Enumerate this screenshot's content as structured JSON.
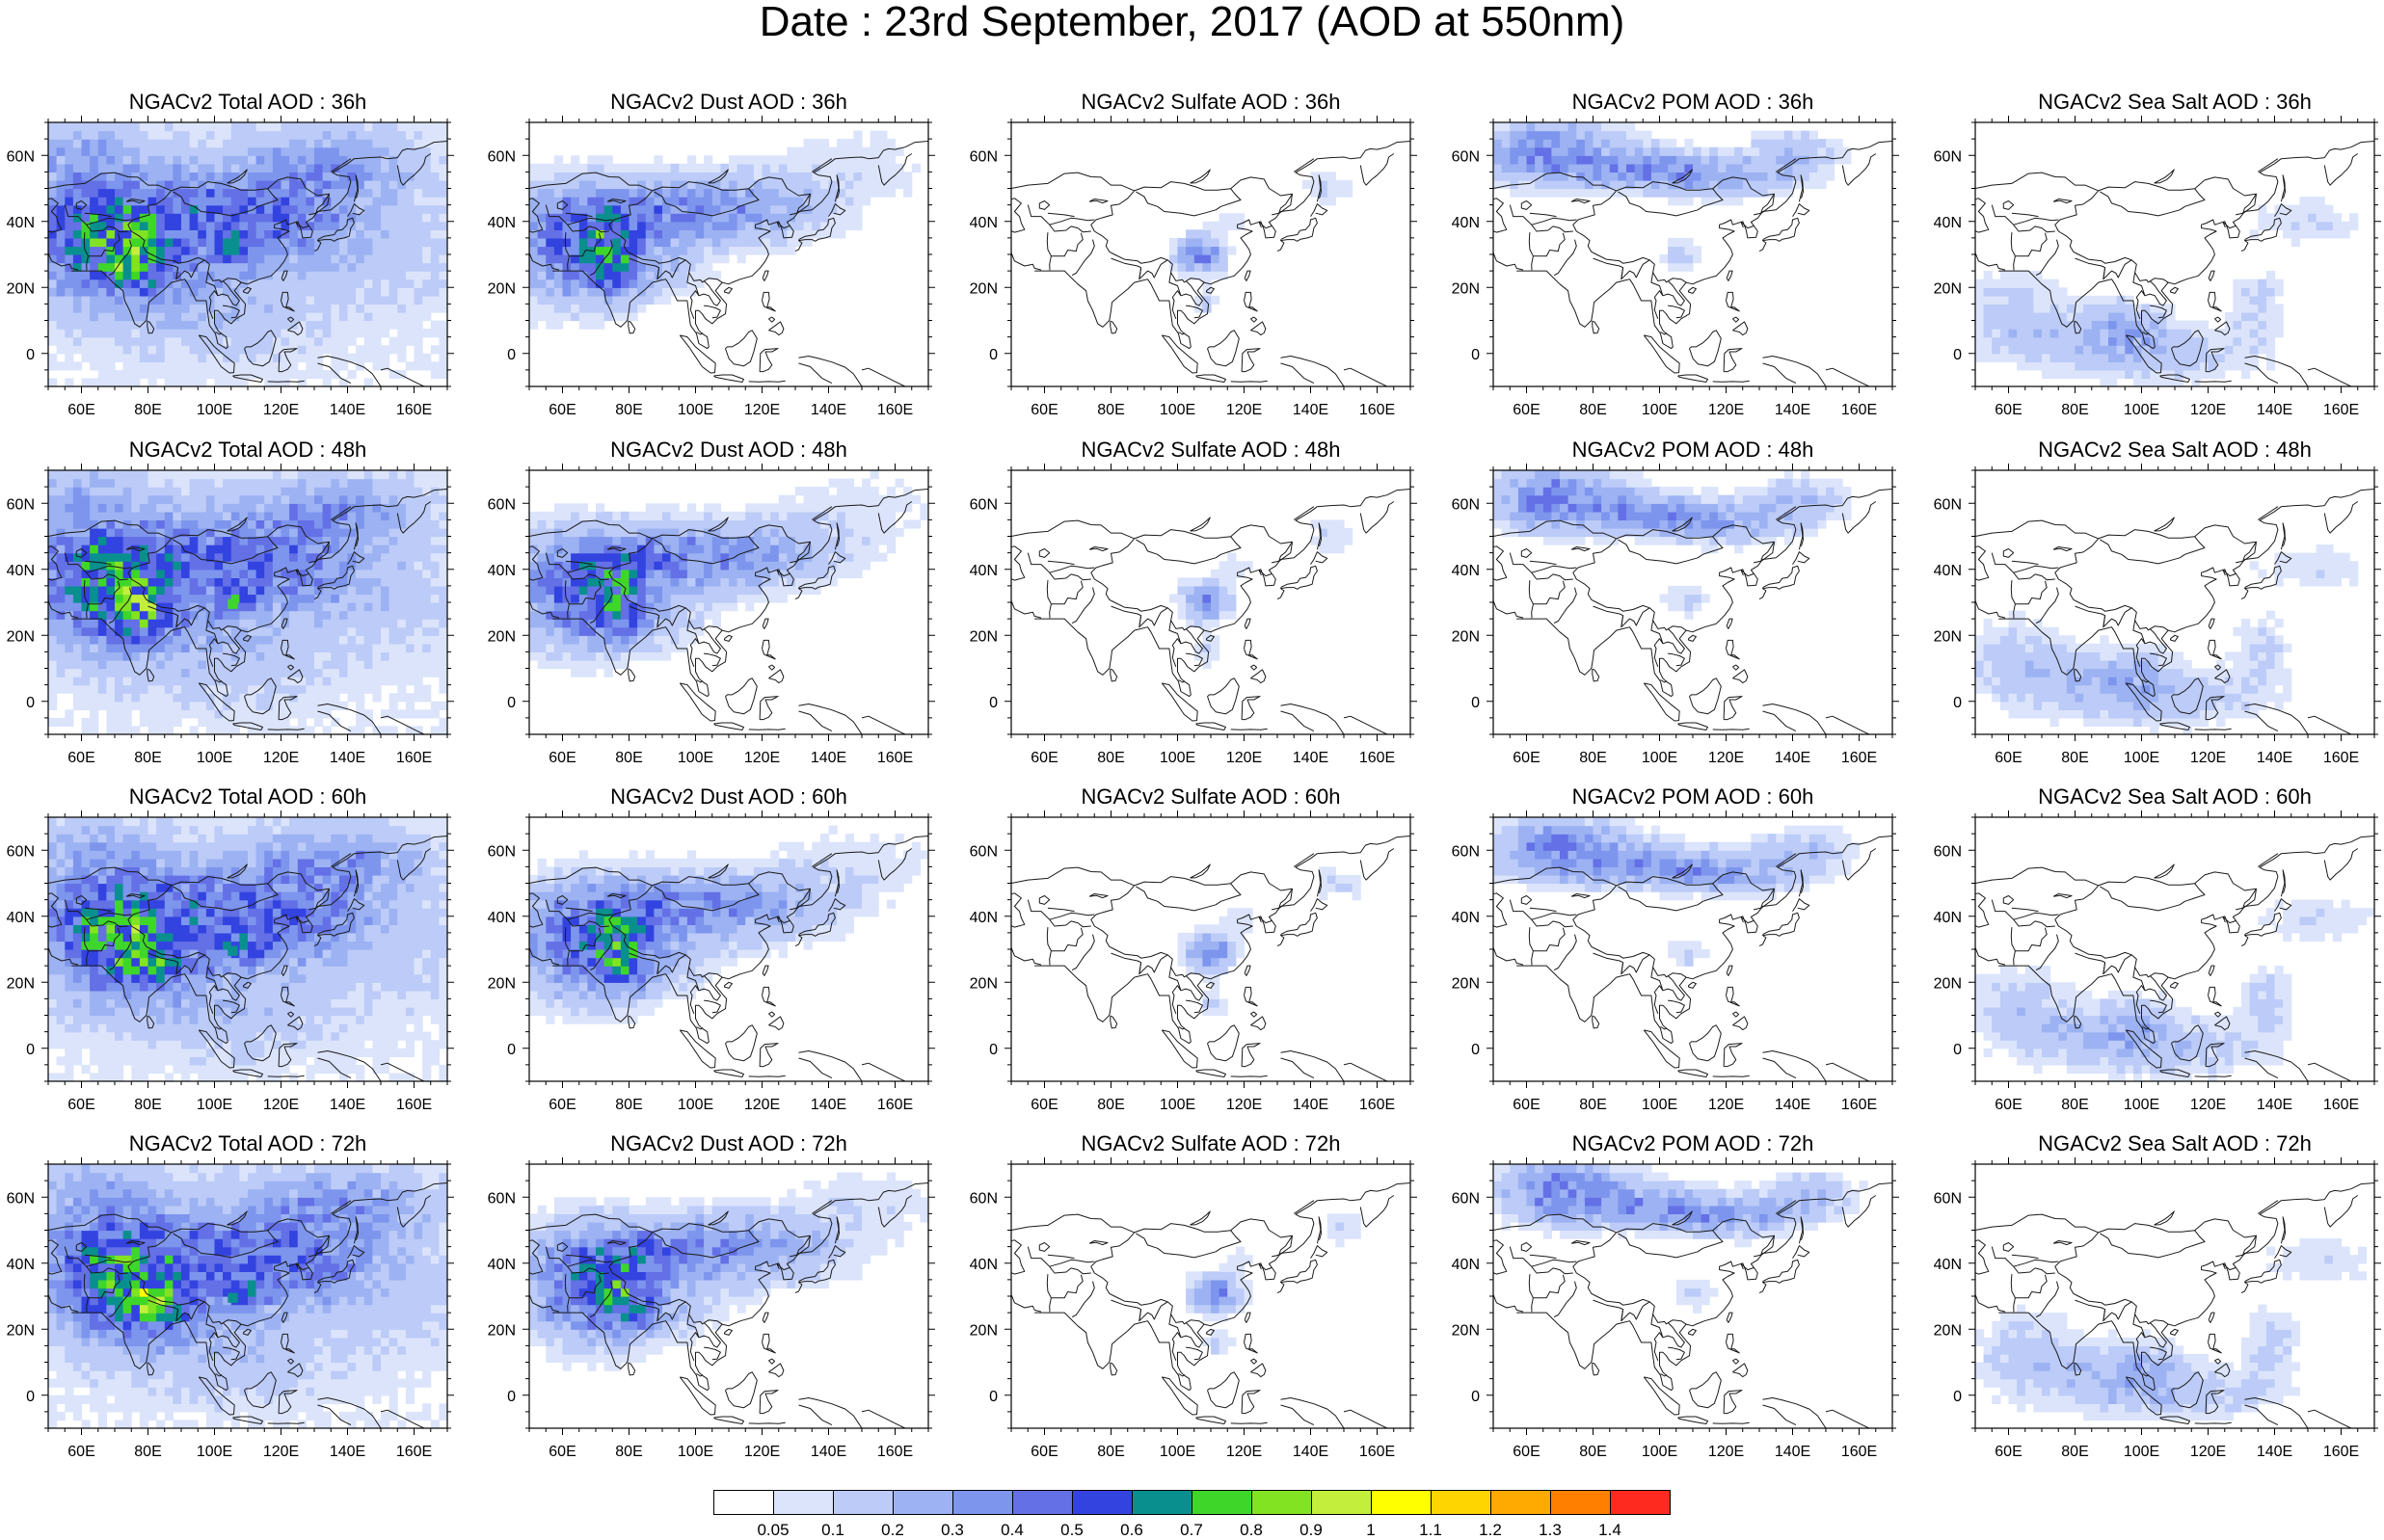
{
  "title": "Date : 23rd September, 2017 (AOD at 550nm)",
  "map": {
    "lon_range": [
      50,
      170
    ],
    "lat_range": [
      -10,
      70
    ],
    "lon_ticks": [
      "60E",
      "80E",
      "100E",
      "120E",
      "140E",
      "160E"
    ],
    "lat_ticks": [
      "60N",
      "40N",
      "20N",
      "0"
    ]
  },
  "panels": [
    [
      "NGACv2 Total AOD : 36h",
      "NGACv2 Dust AOD : 36h",
      "NGACv2 Sulfate AOD : 36h",
      "NGACv2 POM AOD : 36h",
      "NGACv2 Sea Salt AOD : 36h"
    ],
    [
      "NGACv2 Total AOD : 48h",
      "NGACv2 Dust AOD : 48h",
      "NGACv2 Sulfate AOD : 48h",
      "NGACv2 POM AOD : 48h",
      "NGACv2 Sea Salt AOD : 48h"
    ],
    [
      "NGACv2 Total AOD : 60h",
      "NGACv2 Dust AOD : 60h",
      "NGACv2 Sulfate AOD : 60h",
      "NGACv2 POM AOD : 60h",
      "NGACv2 Sea Salt AOD : 60h"
    ],
    [
      "NGACv2 Total AOD : 72h",
      "NGACv2 Dust AOD : 72h",
      "NGACv2 Sulfate AOD : 72h",
      "NGACv2 POM AOD : 72h",
      "NGACv2 Sea Salt  AOD : 72h"
    ]
  ],
  "colorbar": {
    "labels": [
      "0.05",
      "0.1",
      "0.2",
      "0.3",
      "0.4",
      "0.5",
      "0.6",
      "0.7",
      "0.8",
      "0.9",
      "1",
      "1.1",
      "1.2",
      "1.3",
      "1.4"
    ],
    "colors": [
      "#ffffff",
      "#dbe4fb",
      "#bccbf7",
      "#9cb2f2",
      "#7d95ed",
      "#6370e6",
      "#3343e0",
      "#0a8f8f",
      "#3fd62a",
      "#82e322",
      "#c3ef3c",
      "#ffff00",
      "#ffd500",
      "#ffaa00",
      "#ff7f00",
      "#ff2a1f"
    ]
  },
  "colors": {
    "coast": "#1a1a1a",
    "frame": "#000000"
  }
}
